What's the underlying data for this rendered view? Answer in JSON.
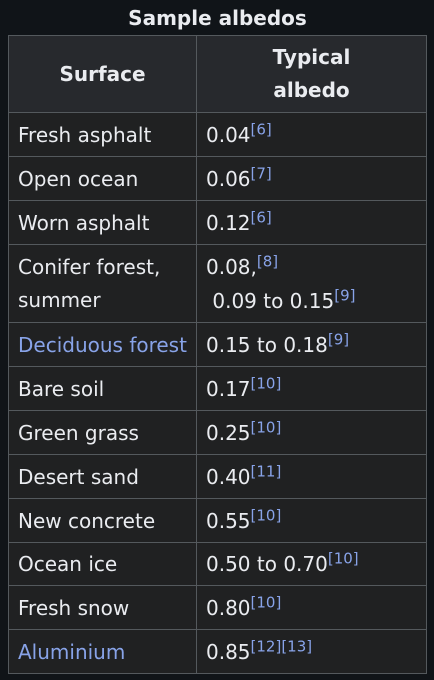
{
  "caption": "Sample albedos",
  "headers": {
    "surface": "Surface",
    "albedo_line1": "Typical",
    "albedo_line2": "albedo"
  },
  "rows": [
    {
      "surface": "Fresh asphalt",
      "albedo": "0.04",
      "refs": "[6]"
    },
    {
      "surface": "Open ocean",
      "albedo": "0.06",
      "refs": "[7]"
    },
    {
      "surface": "Worn asphalt",
      "albedo": "0.12",
      "refs": "[6]"
    },
    {
      "surface_line1": "Conifer forest,",
      "surface_line2": "summer",
      "albedo_a": "0.08,",
      "refs_a": "[8]",
      "albedo_b": " 0.09 to 0.15",
      "refs_b": "[9]"
    },
    {
      "surface": "Deciduous forest",
      "albedo": "0.15 to 0.18",
      "refs": "[9]"
    },
    {
      "surface": "Bare soil",
      "albedo": "0.17",
      "refs": "[10]"
    },
    {
      "surface": "Green grass",
      "albedo": "0.25",
      "refs": "[10]"
    },
    {
      "surface": "Desert sand",
      "albedo": "0.40",
      "refs": "[11]"
    },
    {
      "surface": "New concrete",
      "albedo": "0.55",
      "refs": "[10]"
    },
    {
      "surface": "Ocean ice",
      "albedo": "0.50 to 0.70",
      "refs": "[10]"
    },
    {
      "surface": "Fresh snow",
      "albedo": "0.80",
      "refs": "[10]"
    },
    {
      "surface": "Aluminium",
      "albedo": "0.85",
      "refs_a": "[12]",
      "refs_b": "[13]"
    }
  ],
  "colors": {
    "background": "#101418",
    "cell": "#202122",
    "header": "#27292d",
    "border": "#54595d",
    "text": "#eaecf0",
    "link": "#88a3e8"
  }
}
